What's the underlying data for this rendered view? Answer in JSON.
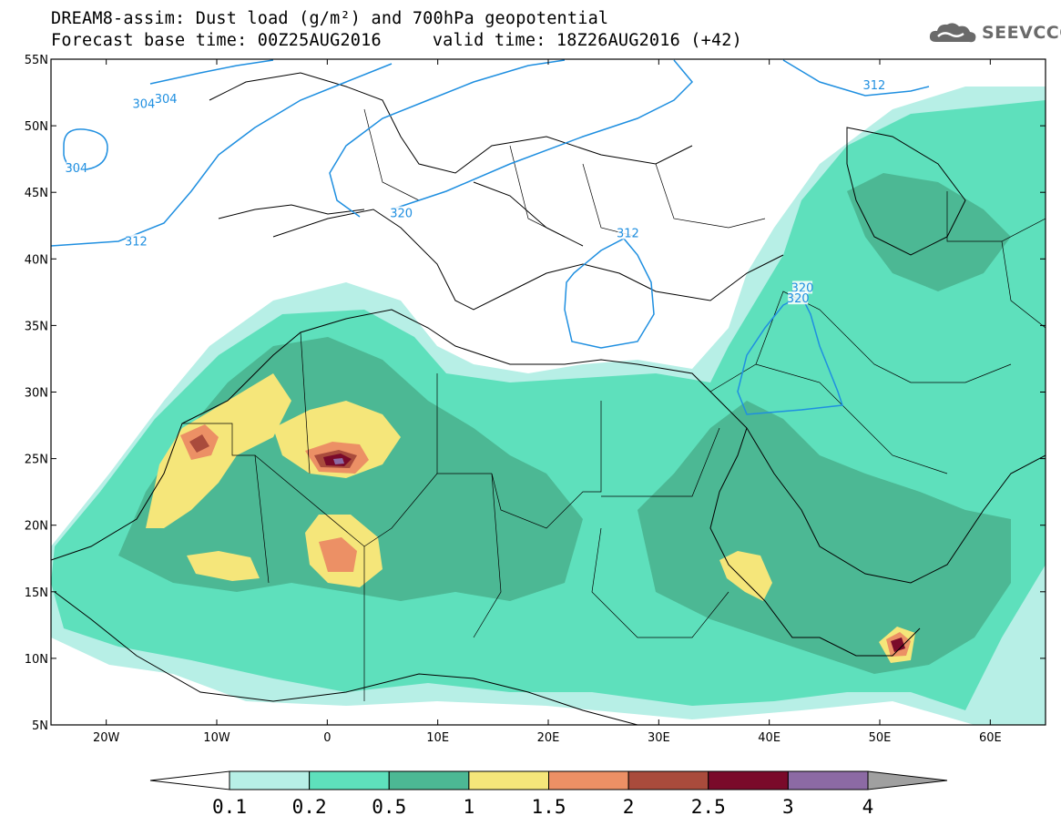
{
  "header": {
    "title_line1": "DREAM8-assim: Dust load (g/m²) and 700hPa geopotential",
    "forecast_base": "Forecast base time: 00Z25AUG2016",
    "valid_time": "valid time: 18Z26AUG2016 (+42)"
  },
  "logo": {
    "text": "SEEVCCC",
    "icon": "cloud-icon"
  },
  "map": {
    "lon_range": [
      -25,
      65
    ],
    "lat_range": [
      5,
      55
    ],
    "lon_ticks": [
      {
        "value": -20,
        "label": "20W"
      },
      {
        "value": -10,
        "label": "10W"
      },
      {
        "value": 0,
        "label": "0"
      },
      {
        "value": 10,
        "label": "10E"
      },
      {
        "value": 20,
        "label": "20E"
      },
      {
        "value": 30,
        "label": "30E"
      },
      {
        "value": 40,
        "label": "40E"
      },
      {
        "value": 50,
        "label": "50E"
      },
      {
        "value": 60,
        "label": "60E"
      }
    ],
    "lat_ticks": [
      {
        "value": 55,
        "label": "55N"
      },
      {
        "value": 50,
        "label": "50N"
      },
      {
        "value": 45,
        "label": "45N"
      },
      {
        "value": 40,
        "label": "40N"
      },
      {
        "value": 35,
        "label": "35N"
      },
      {
        "value": 30,
        "label": "30N"
      },
      {
        "value": 25,
        "label": "25N"
      },
      {
        "value": 20,
        "label": "20N"
      },
      {
        "value": 15,
        "label": "15N"
      },
      {
        "value": 10,
        "label": "10N"
      },
      {
        "value": 5,
        "label": "5N"
      }
    ],
    "contour_labels": [
      {
        "text": "304",
        "lon": -16.6,
        "lat": 51.6
      },
      {
        "text": "304",
        "lon": -14.6,
        "lat": 52.0
      },
      {
        "text": "304",
        "lon": -22.7,
        "lat": 46.8
      },
      {
        "text": "312",
        "lon": -17.3,
        "lat": 41.3
      },
      {
        "text": "312",
        "lon": 49.5,
        "lat": 53.0
      },
      {
        "text": "320",
        "lon": 6.7,
        "lat": 43.4
      },
      {
        "text": "312",
        "lon": 27.2,
        "lat": 41.9
      },
      {
        "text": "320",
        "lon": 43.0,
        "lat": 37.8
      },
      {
        "text": "320",
        "lon": 42.6,
        "lat": 37.0
      }
    ]
  },
  "colorbar": {
    "unit": "g/m²",
    "colors": [
      "#ffffff",
      "#b7efe6",
      "#5ee0bc",
      "#4cb894",
      "#f5e67a",
      "#ec9065",
      "#a94b3c",
      "#7a0a2a",
      "#8c6aa4",
      "#a0a0a0"
    ],
    "labels": [
      "0.1",
      "0.2",
      "0.5",
      "1",
      "1.5",
      "2",
      "2.5",
      "3",
      "4"
    ]
  }
}
